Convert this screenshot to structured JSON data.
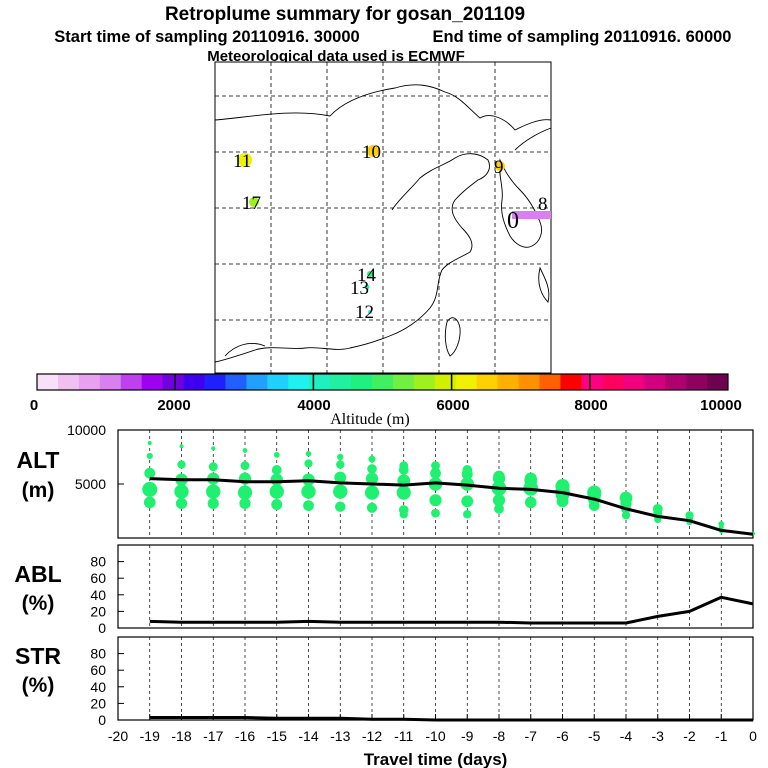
{
  "title": "Retroplume summary for gosan_201109",
  "start_label": "Start time of sampling 20110916. 30000",
  "end_label": "End time of sampling 20110916. 60000",
  "met_label": "Meteorological data used is ECMWF",
  "colorbar": {
    "label": "Altitude (m)",
    "ticks": [
      "0",
      "2000",
      "4000",
      "6000",
      "8000",
      "10000"
    ],
    "colors": [
      "#f8e0f8",
      "#f0c0f0",
      "#e8a0f0",
      "#d880f0",
      "#c040f0",
      "#a000f0",
      "#7000e0",
      "#4000f0",
      "#2020ff",
      "#2060ff",
      "#20a0ff",
      "#20d0ff",
      "#20f0f0",
      "#20f0c0",
      "#20f0a0",
      "#20f080",
      "#40f060",
      "#70f040",
      "#a0f020",
      "#d0f000",
      "#f0f000",
      "#ffd000",
      "#ffb000",
      "#ff9000",
      "#ff6000",
      "#ff0000",
      "#ff0080",
      "#ff0060",
      "#f00080",
      "#d00080",
      "#b00070",
      "#900060",
      "#700050"
    ]
  },
  "map": {
    "labels": [
      {
        "text": "11",
        "color": "#f0f000"
      },
      {
        "text": "10",
        "color": "#ffd000"
      },
      {
        "text": "9",
        "color": "#ffd000"
      },
      {
        "text": "8",
        "color": "#d880f0"
      },
      {
        "text": "17",
        "color": "#a0f020"
      },
      {
        "text": "0",
        "color": "#d880f0"
      },
      {
        "text": "14",
        "color": "#20f080"
      },
      {
        "text": "13",
        "color": "#20f0c0"
      },
      {
        "text": "12",
        "color": "#20f0f0"
      }
    ]
  },
  "chart_data": [
    {
      "type": "line",
      "panel": "ALT",
      "ylabel": "ALT\n(m)",
      "ylim": [
        0,
        10000
      ],
      "yticks": [
        "10000",
        "5000"
      ],
      "dot_color": "#20f070",
      "x": [
        -19,
        -18,
        -17,
        -16,
        -15,
        -14,
        -13,
        -12,
        -11,
        -10,
        -9,
        -8,
        -7,
        -6,
        -5,
        -4,
        -3,
        -2,
        -1,
        0
      ],
      "values": [
        5500,
        5400,
        5400,
        5200,
        5200,
        5300,
        5100,
        5000,
        4900,
        5100,
        4900,
        4600,
        4500,
        4200,
        3600,
        2700,
        2000,
        1600,
        700,
        350
      ],
      "scatter": [
        {
          "x": -19,
          "ys": [
            8800,
            7600,
            6000,
            4500,
            3300
          ]
        },
        {
          "x": -18,
          "ys": [
            8500,
            6800,
            5400,
            4300,
            3200
          ]
        },
        {
          "x": -17,
          "ys": [
            8300,
            6600,
            5500,
            4300,
            3200
          ]
        },
        {
          "x": -16,
          "ys": [
            8100,
            6700,
            5500,
            4200,
            3200
          ]
        },
        {
          "x": -15,
          "ys": [
            7700,
            6300,
            5400,
            4300,
            3100
          ]
        },
        {
          "x": -14,
          "ys": [
            7800,
            6900,
            5400,
            4300,
            3000
          ]
        },
        {
          "x": -13,
          "ys": [
            7500,
            6800,
            5600,
            4300,
            2900
          ]
        },
        {
          "x": -12,
          "ys": [
            7300,
            6400,
            5500,
            4200,
            2800
          ]
        },
        {
          "x": -11,
          "ys": [
            6700,
            6300,
            5300,
            4200,
            2600,
            2200
          ]
        },
        {
          "x": -10,
          "ys": [
            6700,
            6000,
            5000,
            3500,
            2300
          ]
        },
        {
          "x": -9,
          "ys": [
            6300,
            5900,
            5000,
            3400,
            2200
          ]
        },
        {
          "x": -8,
          "ys": [
            5700,
            5500,
            4600,
            3500,
            2700
          ]
        },
        {
          "x": -7,
          "ys": [
            5500,
            5300,
            4600,
            3300
          ]
        },
        {
          "x": -6,
          "ys": [
            4800,
            4300,
            4000,
            3400
          ]
        },
        {
          "x": -5,
          "ys": [
            4200,
            4000,
            3600,
            3000
          ]
        },
        {
          "x": -4,
          "ys": [
            3700,
            3200,
            2700,
            2100
          ]
        },
        {
          "x": -3,
          "ys": [
            2700,
            2300,
            2000,
            1700
          ]
        },
        {
          "x": -2,
          "ys": [
            2100,
            1800,
            1500
          ]
        },
        {
          "x": -1,
          "ys": [
            1300,
            1000,
            600
          ]
        },
        {
          "x": 0,
          "ys": [
            400
          ]
        }
      ]
    },
    {
      "type": "line",
      "panel": "ABL",
      "ylabel": "ABL\n(%)",
      "ylim": [
        0,
        100
      ],
      "yticks": [
        "0",
        "20",
        "40",
        "60",
        "80"
      ],
      "x": [
        -19,
        -18,
        -17,
        -16,
        -15,
        -14,
        -13,
        -12,
        -11,
        -10,
        -9,
        -8,
        -7,
        -6,
        -5,
        -4,
        -3,
        -2,
        -1,
        0
      ],
      "values": [
        8,
        7,
        7,
        7,
        7,
        8,
        7,
        7,
        7,
        7,
        7,
        7,
        6,
        6,
        6,
        6,
        14,
        20,
        37,
        29
      ]
    },
    {
      "type": "line",
      "panel": "STR",
      "ylabel": "STR\n(%)",
      "ylim": [
        0,
        100
      ],
      "yticks": [
        "0",
        "20",
        "40",
        "60",
        "80"
      ],
      "x": [
        -19,
        -18,
        -17,
        -16,
        -15,
        -14,
        -13,
        -12,
        -11,
        -10,
        -9,
        -8,
        -7,
        -6,
        -5,
        -4,
        -3,
        -2,
        -1,
        0
      ],
      "values": [
        3,
        3,
        3,
        3,
        2,
        2,
        2,
        1,
        1,
        0,
        0,
        0,
        0,
        0,
        0,
        0,
        0,
        0,
        0,
        0
      ],
      "xlabel": "Travel time (days)",
      "xticks": [
        "-20",
        "-19",
        "-18",
        "-17",
        "-16",
        "-15",
        "-14",
        "-13",
        "-12",
        "-11",
        "-10",
        "-9",
        "-8",
        "-7",
        "-6",
        "-5",
        "-4",
        "-3",
        "-2",
        "-1",
        "0"
      ]
    }
  ]
}
